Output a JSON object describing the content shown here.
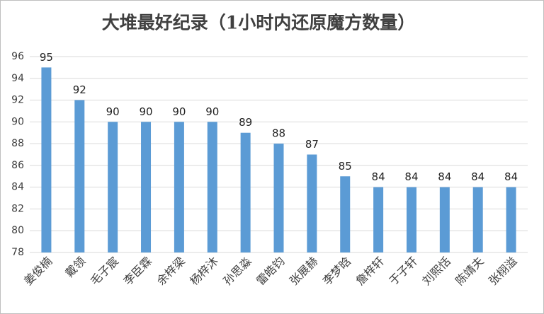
{
  "chart_data": {
    "type": "bar",
    "title": "大堆最好纪录（1小时内还原魔方数量）",
    "categories": [
      "姜俊楠",
      "戴领",
      "毛子宸",
      "李臣霖",
      "余梓梁",
      "杨梓沐",
      "孙思淼",
      "雷皓钧",
      "张展赫",
      "李梦晗",
      "詹梓轩",
      "于子轩",
      "刘熙恬",
      "陈靖夫",
      "张栩溢"
    ],
    "values": [
      95,
      92,
      90,
      90,
      90,
      90,
      89,
      88,
      87,
      85,
      84,
      84,
      84,
      84,
      84
    ],
    "color": "#5b9bd5",
    "ylim": [
      78,
      96
    ],
    "yticks": [
      78,
      80,
      82,
      84,
      86,
      88,
      90,
      92,
      94,
      96
    ],
    "grid": true
  }
}
